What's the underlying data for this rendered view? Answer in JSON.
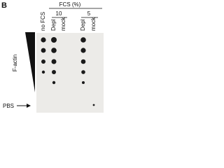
{
  "panel": "B",
  "header": {
    "title": "FCS (%)",
    "groups": [
      "10",
      "5"
    ]
  },
  "columns": [
    "no FCS",
    "Depl",
    "mock",
    "Depl",
    "mock"
  ],
  "gradient_label": "F-actin",
  "control_label": "PBS"
}
